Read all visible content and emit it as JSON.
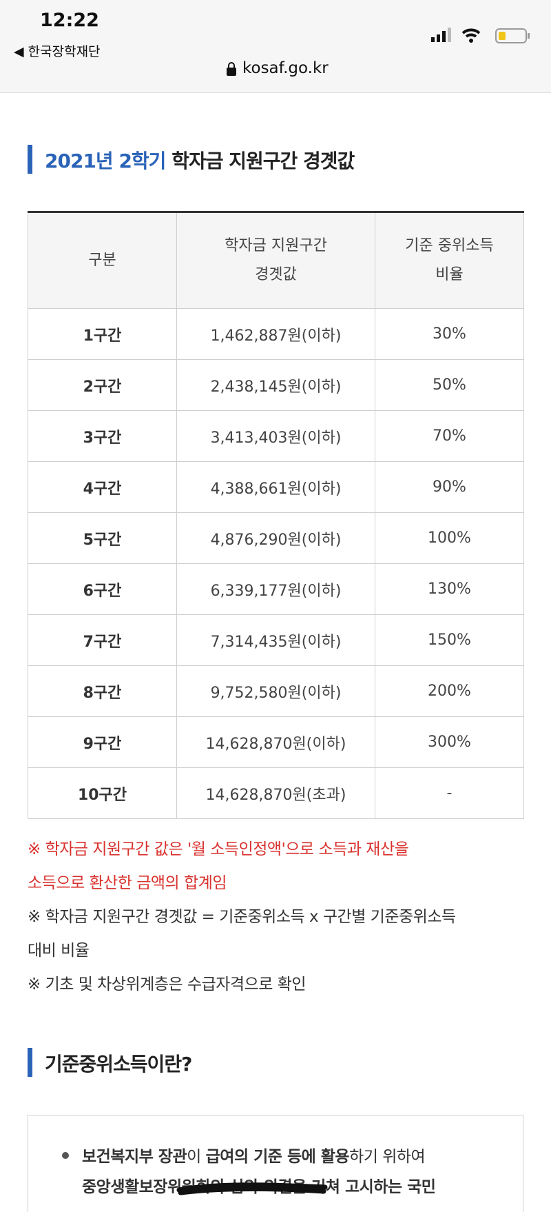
{
  "status_bar": {
    "time": "12:22",
    "back": "◀ 한국장학재단",
    "url": "kosaf.go.kr"
  },
  "section1": {
    "title_highlight": "2021년 2학기",
    "title_rest": "학자금 지원구간 경곗값"
  },
  "table": {
    "headers": [
      [
        "구분"
      ],
      [
        "학자금 지원구간",
        "경곗값"
      ],
      [
        "기준 중위소득",
        "비율"
      ]
    ],
    "rows": [
      [
        "1구간",
        "1,462,887원(이하)",
        "30%"
      ],
      [
        "2구간",
        "2,438,145원(이하)",
        "50%"
      ],
      [
        "3구간",
        "3,413,403원(이하)",
        "70%"
      ],
      [
        "4구간",
        "4,388,661원(이하)",
        "90%"
      ],
      [
        "5구간",
        "4,876,290원(이하)",
        "100%"
      ],
      [
        "6구간",
        "6,339,177원(이하)",
        "130%"
      ],
      [
        "7구간",
        "7,314,435원(이하)",
        "150%"
      ],
      [
        "8구간",
        "9,752,580원(이하)",
        "200%"
      ],
      [
        "9구간",
        "14,628,870원(이하)",
        "300%"
      ],
      [
        "10구간",
        "14,628,870원(초과)",
        "-"
      ]
    ]
  },
  "notes": [
    {
      "lines": [
        "※ 학자금 지원구간 값은 '월 소득인정액'으로 소득과 재산을",
        "소득으로 환산한 금액의 합계임"
      ],
      "color": "#d9322e"
    },
    {
      "lines": [
        "※ 학자금 지원구간 경곗값 = 기준중위소득 x 구간별 기준중위소득",
        "대비 비율"
      ],
      "color": "#333333"
    },
    {
      "lines": [
        "※ 기초 및 차상위계층은 수급자격으로 확인"
      ],
      "color": "#333333"
    }
  ],
  "section2": {
    "title": "기준중위소득이란?",
    "bullet_lines": [
      [
        {
          "text": "보건복지부 장관",
          "bold": true
        },
        {
          "text": "이 ",
          "bold": false
        },
        {
          "text": "급여의 기준 등에 활용",
          "bold": true
        },
        {
          "text": "하기 위하여",
          "bold": false
        }
      ],
      [
        {
          "text": "중앙생활보장위원회의 심의·의결을 거쳐 ",
          "bold": true
        },
        {
          "text": "고시하는 국민",
          "bold": true
        }
      ]
    ]
  }
}
